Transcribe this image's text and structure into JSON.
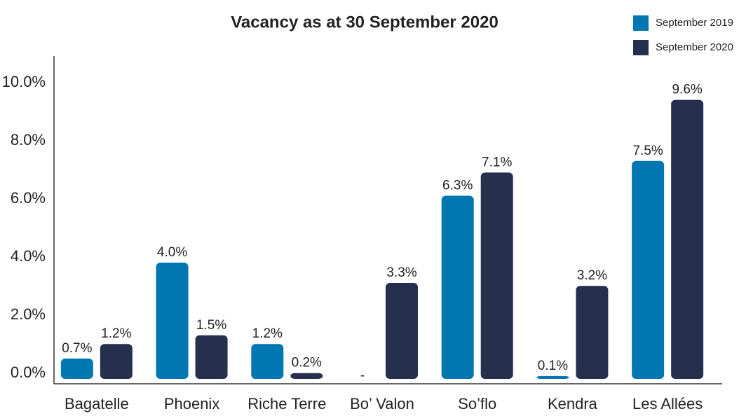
{
  "chart_data": {
    "type": "bar",
    "title": "Vacancy as at 30 September 2020",
    "categories": [
      "Bagatelle",
      "Phoenix",
      "Riche Terre",
      "Bo’ Valon",
      "So’flo",
      "Kendra",
      "Les Allées"
    ],
    "series": [
      {
        "name": "September 2019",
        "color": "#0077b0",
        "values": [
          0.7,
          4.0,
          1.2,
          null,
          6.3,
          0.1,
          7.5
        ],
        "value_labels": [
          "0.7%",
          "4.0%",
          "1.2%",
          "-",
          "6.3%",
          "0.1%",
          "7.5%"
        ]
      },
      {
        "name": "September 2020",
        "color": "#25304f",
        "values": [
          1.2,
          1.5,
          0.2,
          3.3,
          7.1,
          3.2,
          9.6
        ],
        "value_labels": [
          "1.2%",
          "1.5%",
          "0.2%",
          "3.3%",
          "7.1%",
          "3.2%",
          "9.6%"
        ]
      }
    ],
    "ylim": [
      0,
      10
    ],
    "yticks": [
      {
        "value": 0,
        "label": "0.0%"
      },
      {
        "value": 2,
        "label": "2.0%"
      },
      {
        "value": 4,
        "label": "4.0%"
      },
      {
        "value": 6,
        "label": "6.0%"
      },
      {
        "value": 8,
        "label": "8.0%"
      },
      {
        "value": 10,
        "label": "10.0%"
      }
    ],
    "legend": "top-right"
  }
}
